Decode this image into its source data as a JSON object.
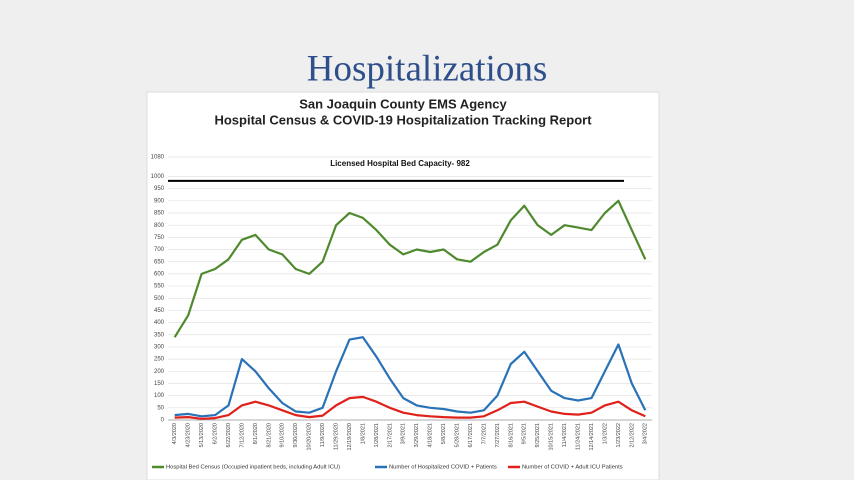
{
  "title": "Hospitalizations",
  "chart_data": {
    "type": "line",
    "title": "San Joaquin County EMS Agency",
    "subtitle": "Hospital Census & COVID-19 Hospitalization Tracking Report",
    "annotation": "Licensed Hospital Bed Capacity- 982",
    "capacity": 982,
    "capacity_color": "#000000",
    "categories": [
      "4/3/2020",
      "4/23/2020",
      "5/13/2020",
      "6/2/2020",
      "6/22/2020",
      "7/12/2020",
      "8/1/2020",
      "8/21/2020",
      "9/10/2020",
      "9/30/2020",
      "10/20/2020",
      "11/9/2020",
      "11/29/2020",
      "12/19/2020",
      "1/8/2021",
      "1/28/2021",
      "2/17/2021",
      "3/9/2021",
      "3/29/2021",
      "4/18/2021",
      "5/8/2021",
      "5/28/2021",
      "6/17/2021",
      "7/7/2021",
      "7/27/2021",
      "8/16/2021",
      "9/5/2021",
      "9/25/2021",
      "10/15/2021",
      "11/4/2021",
      "11/24/2021",
      "12/14/2021",
      "1/3/2022",
      "1/23/2022",
      "2/12/2022",
      "3/4/2022"
    ],
    "series": [
      {
        "name": "Hospital Bed Census (Occupied inpatient beds, including Adult ICU)",
        "color": "#4f8a2e",
        "values": [
          340,
          430,
          600,
          620,
          660,
          740,
          760,
          700,
          680,
          620,
          600,
          650,
          800,
          850,
          830,
          780,
          720,
          680,
          700,
          690,
          700,
          660,
          650,
          690,
          720,
          820,
          880,
          800,
          760,
          800,
          790,
          780,
          850,
          900,
          780,
          660
        ]
      },
      {
        "name": "Number of Hospitalized COVID + Patients",
        "color": "#2a72b8",
        "values": [
          20,
          25,
          15,
          20,
          60,
          250,
          200,
          130,
          70,
          35,
          30,
          50,
          200,
          330,
          340,
          260,
          170,
          90,
          60,
          50,
          45,
          35,
          30,
          40,
          100,
          230,
          280,
          200,
          120,
          90,
          80,
          90,
          200,
          310,
          150,
          40
        ]
      },
      {
        "name": "Number of COVID + Adult ICU Patients",
        "color": "#e0201b",
        "values": [
          10,
          12,
          5,
          8,
          20,
          60,
          75,
          60,
          40,
          20,
          12,
          18,
          60,
          90,
          95,
          75,
          50,
          30,
          20,
          15,
          12,
          10,
          10,
          15,
          40,
          70,
          75,
          55,
          35,
          25,
          22,
          30,
          60,
          75,
          40,
          15
        ]
      }
    ],
    "ylim": [
      0,
      1080
    ],
    "yticks": [
      0,
      50,
      100,
      150,
      200,
      250,
      300,
      350,
      400,
      450,
      500,
      550,
      600,
      650,
      700,
      750,
      800,
      850,
      900,
      950,
      1000,
      1080
    ],
    "grid": true
  }
}
